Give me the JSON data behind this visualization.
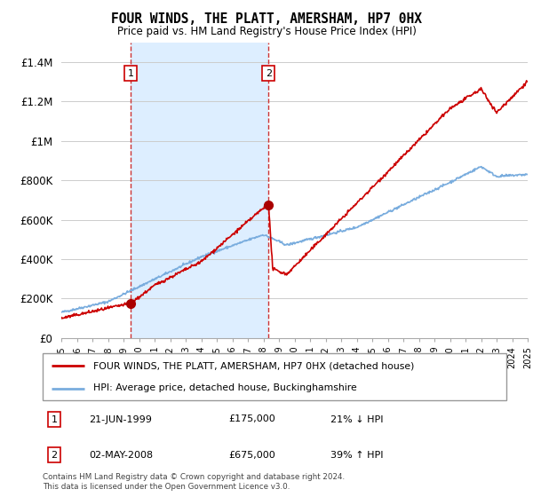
{
  "title": "FOUR WINDS, THE PLATT, AMERSHAM, HP7 0HX",
  "subtitle": "Price paid vs. HM Land Registry's House Price Index (HPI)",
  "ylim": [
    0,
    1500000
  ],
  "yticks": [
    0,
    200000,
    400000,
    600000,
    800000,
    1000000,
    1200000,
    1400000
  ],
  "ytick_labels": [
    "£0",
    "£200K",
    "£400K",
    "£600K",
    "£800K",
    "£1M",
    "£1.2M",
    "£1.4M"
  ],
  "xlim": [
    1995,
    2025
  ],
  "marker1": {
    "date": 1999.47,
    "value": 175000,
    "label": "1",
    "text": "21-JUN-1999",
    "price": "£175,000",
    "pct": "21% ↓ HPI"
  },
  "marker2": {
    "date": 2008.33,
    "value": 675000,
    "label": "2",
    "text": "02-MAY-2008",
    "price": "£675,000",
    "pct": "39% ↑ HPI"
  },
  "legend_line1": "FOUR WINDS, THE PLATT, AMERSHAM, HP7 0HX (detached house)",
  "legend_line2": "HPI: Average price, detached house, Buckinghamshire",
  "footer": "Contains HM Land Registry data © Crown copyright and database right 2024.\nThis data is licensed under the Open Government Licence v3.0.",
  "line_color_red": "#cc0000",
  "line_color_blue": "#7aadde",
  "shade_color": "#ddeeff",
  "marker_color_red": "#aa0000",
  "dashed_color": "#cc3333",
  "background_color": "#ffffff",
  "grid_color": "#cccccc"
}
